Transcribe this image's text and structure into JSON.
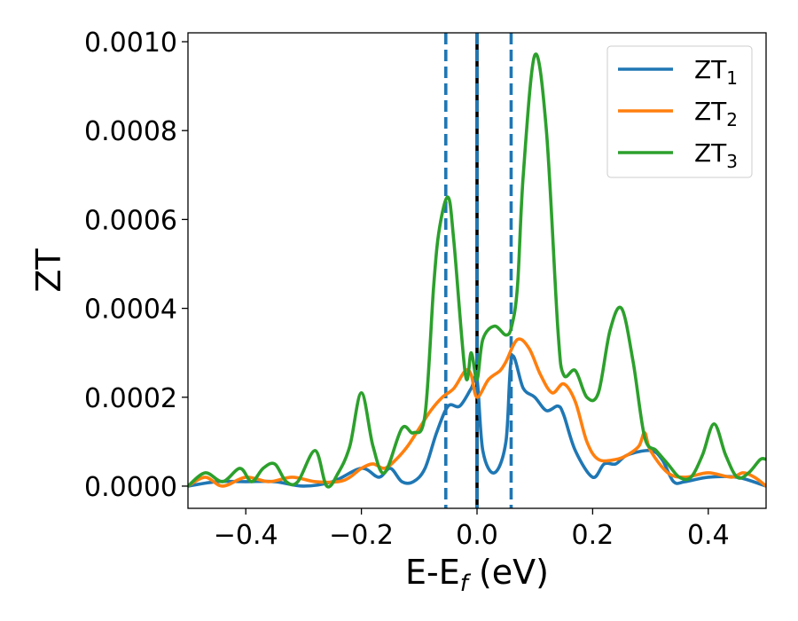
{
  "chart_data": {
    "type": "line",
    "xlabel": {
      "main": "E-E",
      "sub": "f",
      "tail": " (eV)"
    },
    "ylabel": "ZT",
    "xlim": [
      -0.5,
      0.5
    ],
    "ylim": [
      -5e-05,
      0.00102
    ],
    "x_ticks": [
      -0.4,
      -0.2,
      0.0,
      0.2,
      0.4
    ],
    "x_tick_labels": [
      "−0.4",
      "−0.2",
      "0.0",
      "0.2",
      "0.4"
    ],
    "y_ticks": [
      0.0,
      0.0002,
      0.0004,
      0.0006,
      0.0008,
      0.001
    ],
    "y_tick_labels": [
      "0.0000",
      "0.0002",
      "0.0004",
      "0.0006",
      "0.0008",
      "0.0010"
    ],
    "grid": false,
    "legend_position": "top-right",
    "vlines": [
      {
        "x": 0.0,
        "style": "solid",
        "color": "#000000"
      },
      {
        "x": -0.054,
        "style": "dashed",
        "color": "#1f77b4"
      },
      {
        "x": 0.0,
        "style": "dashed",
        "color": "#1f77b4"
      },
      {
        "x": 0.059,
        "style": "dashed",
        "color": "#1f77b4"
      }
    ],
    "series": [
      {
        "name": "ZT",
        "subscript": "1",
        "color": "#1f77b4",
        "x": [
          -0.5,
          -0.45,
          -0.4,
          -0.35,
          -0.3,
          -0.25,
          -0.2,
          -0.17,
          -0.15,
          -0.13,
          -0.11,
          -0.09,
          -0.07,
          -0.05,
          -0.03,
          -0.01,
          0.0,
          0.01,
          0.03,
          0.05,
          0.06,
          0.08,
          0.1,
          0.12,
          0.14,
          0.15,
          0.17,
          0.2,
          0.22,
          0.24,
          0.26,
          0.3,
          0.32,
          0.34,
          0.36,
          0.4,
          0.45,
          0.5
        ],
        "y": [
          0.0,
          1e-05,
          1e-05,
          1e-05,
          0.0,
          1e-05,
          4e-05,
          2e-05,
          4e-05,
          1e-05,
          1e-05,
          4e-05,
          0.00012,
          0.00018,
          0.00018,
          0.00022,
          0.00024,
          8e-05,
          3e-05,
          0.0001,
          0.00029,
          0.00022,
          0.0002,
          0.00017,
          0.00018,
          0.00016,
          8e-05,
          2e-05,
          5e-05,
          5e-05,
          7e-05,
          8e-05,
          6e-05,
          1e-05,
          1e-05,
          2e-05,
          2e-05,
          0.0
        ]
      },
      {
        "name": "ZT",
        "subscript": "2",
        "color": "#ff7f0e",
        "x": [
          -0.5,
          -0.47,
          -0.44,
          -0.4,
          -0.36,
          -0.32,
          -0.28,
          -0.24,
          -0.22,
          -0.2,
          -0.18,
          -0.16,
          -0.14,
          -0.12,
          -0.1,
          -0.08,
          -0.06,
          -0.04,
          -0.02,
          -0.01,
          0.0,
          0.02,
          0.04,
          0.05,
          0.07,
          0.09,
          0.11,
          0.13,
          0.15,
          0.17,
          0.19,
          0.21,
          0.24,
          0.26,
          0.28,
          0.29,
          0.3,
          0.33,
          0.36,
          0.4,
          0.44,
          0.46,
          0.48,
          0.5
        ],
        "y": [
          0.0,
          2e-05,
          0.0,
          2e-05,
          1e-05,
          2e-05,
          1e-05,
          1e-05,
          2e-05,
          4e-05,
          5e-05,
          4e-05,
          6e-05,
          9e-05,
          0.00013,
          0.00017,
          0.0002,
          0.00022,
          0.00026,
          0.00025,
          0.0002,
          0.00024,
          0.00026,
          0.00028,
          0.00033,
          0.00031,
          0.00025,
          0.00021,
          0.00023,
          0.00019,
          0.0001,
          6e-05,
          6e-05,
          7e-05,
          9e-05,
          0.00012,
          8e-05,
          3e-05,
          2e-05,
          3e-05,
          2e-05,
          3e-05,
          2e-05,
          0.0
        ]
      },
      {
        "name": "ZT",
        "subscript": "3",
        "color": "#2ca02c",
        "x": [
          -0.5,
          -0.47,
          -0.44,
          -0.41,
          -0.39,
          -0.37,
          -0.35,
          -0.33,
          -0.31,
          -0.28,
          -0.26,
          -0.24,
          -0.22,
          -0.2,
          -0.18,
          -0.16,
          -0.13,
          -0.11,
          -0.09,
          -0.075,
          -0.065,
          -0.05,
          -0.04,
          -0.02,
          -0.01,
          0.0,
          0.01,
          0.03,
          0.05,
          0.06,
          0.07,
          0.08,
          0.1,
          0.12,
          0.14,
          0.15,
          0.17,
          0.19,
          0.21,
          0.23,
          0.25,
          0.27,
          0.29,
          0.31,
          0.33,
          0.35,
          0.37,
          0.39,
          0.41,
          0.43,
          0.45,
          0.47,
          0.49,
          0.5
        ],
        "y": [
          0.0,
          3e-05,
          1e-05,
          4e-05,
          1e-05,
          4e-05,
          5e-05,
          1e-05,
          1e-05,
          8e-05,
          0.0,
          3e-05,
          9e-05,
          0.00021,
          9e-05,
          3e-05,
          0.00013,
          0.00012,
          0.00016,
          0.00045,
          0.00058,
          0.00065,
          0.00055,
          0.00025,
          0.0003,
          0.00024,
          0.00033,
          0.00036,
          0.00034,
          0.00036,
          0.00045,
          0.0007,
          0.00097,
          0.0008,
          0.00035,
          0.00025,
          0.00026,
          0.0002,
          0.00021,
          0.00035,
          0.0004,
          0.00028,
          0.00011,
          8e-05,
          5e-05,
          2e-05,
          2e-05,
          7e-05,
          0.00014,
          7e-05,
          2e-05,
          3e-05,
          6e-05,
          6e-05
        ]
      }
    ]
  }
}
